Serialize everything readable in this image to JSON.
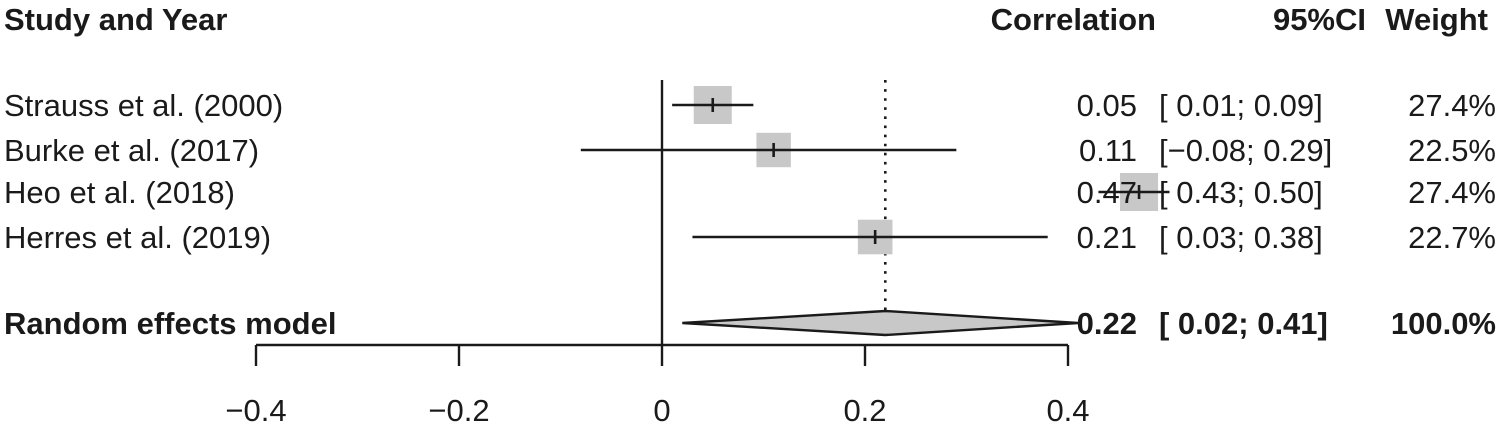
{
  "chart_data": {
    "type": "forest",
    "headers": {
      "study": "Study and Year",
      "correlation": "Correlation",
      "ci": "95%CI",
      "weight": "Weight"
    },
    "studies": [
      {
        "label": "Strauss et al. (2000)",
        "estimate": 0.05,
        "lower": 0.01,
        "upper": 0.09,
        "weight": 27.4,
        "est_text": "0.05",
        "ci_text": "[ 0.01; 0.09]",
        "weight_text": "27.4%"
      },
      {
        "label": "Burke et al. (2017)",
        "estimate": 0.11,
        "lower": -0.08,
        "upper": 0.29,
        "weight": 22.5,
        "est_text": "0.11",
        "ci_text": "[−0.08; 0.29]",
        "weight_text": "22.5%"
      },
      {
        "label": "Heo et al. (2018)",
        "estimate": 0.47,
        "lower": 0.43,
        "upper": 0.5,
        "weight": 27.4,
        "est_text": "0.47",
        "ci_text": "[ 0.43; 0.50]",
        "weight_text": "27.4%"
      },
      {
        "label": "Herres et al. (2019)",
        "estimate": 0.21,
        "lower": 0.03,
        "upper": 0.38,
        "weight": 22.7,
        "est_text": "0.21",
        "ci_text": "[ 0.03; 0.38]",
        "weight_text": "22.7%"
      }
    ],
    "summary": {
      "label": "Random effects model",
      "estimate": 0.22,
      "lower": 0.02,
      "upper": 0.41,
      "weight": 100.0,
      "est_text": "0.22",
      "ci_text": "[ 0.02; 0.41]",
      "weight_text": "100.0%"
    },
    "xaxis": {
      "ticks": [
        -0.4,
        -0.2,
        0,
        0.2,
        0.4
      ],
      "tick_labels": [
        "−0.4",
        "−0.2",
        "0",
        "0.2",
        "0.4"
      ],
      "range": [
        -0.4,
        0.4
      ]
    },
    "null_line": 0,
    "reference_line": 0.22,
    "colors": {
      "box": "#c8c8c8",
      "diamond": "#c8c8c8",
      "line": "#1a1a1a"
    }
  }
}
